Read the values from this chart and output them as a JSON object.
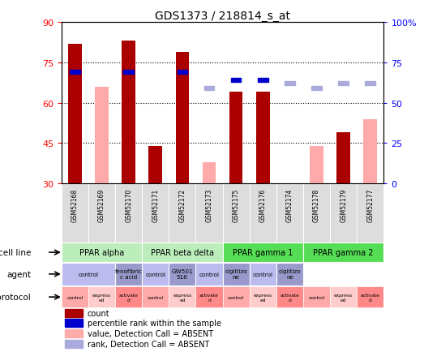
{
  "title": "GDS1373 / 218814_s_at",
  "samples": [
    "GSM52168",
    "GSM52169",
    "GSM52170",
    "GSM52171",
    "GSM52172",
    "GSM52173",
    "GSM52175",
    "GSM52176",
    "GSM52174",
    "GSM52178",
    "GSM52179",
    "GSM52177"
  ],
  "count_values": [
    82,
    null,
    83,
    44,
    79,
    null,
    64,
    64,
    null,
    null,
    49,
    null
  ],
  "rank_values": [
    69,
    null,
    69,
    null,
    69,
    null,
    64,
    64,
    null,
    null,
    null,
    null
  ],
  "rank_absent": [
    null,
    null,
    null,
    null,
    null,
    59,
    null,
    null,
    62,
    59,
    62,
    62
  ],
  "value_absent": [
    null,
    66,
    null,
    null,
    null,
    38,
    null,
    null,
    null,
    44,
    null,
    54
  ],
  "ylim_left": [
    30,
    90
  ],
  "ylim_right": [
    0,
    100
  ],
  "yticks_left": [
    30,
    45,
    60,
    75,
    90
  ],
  "yticks_right": [
    0,
    25,
    50,
    75,
    100
  ],
  "ytick_right_labels": [
    "0",
    "25",
    "50",
    "75",
    "100%"
  ],
  "bar_color_dark_red": "#AA0000",
  "bar_color_pink": "#FFAAAA",
  "rank_color_blue": "#0000CC",
  "rank_color_lightblue": "#AAAADD",
  "cell_line_labels": [
    "PPAR alpha",
    "PPAR beta delta",
    "PPAR gamma 1",
    "PPAR gamma 2"
  ],
  "cell_line_colors": [
    "#BBEEBB",
    "#BBEEBB",
    "#55DD55",
    "#55DD55"
  ],
  "agent_color": "#BBBBEE",
  "agent_color_dark": "#9999CC",
  "protocol_colors": [
    "#FFAAAA",
    "#FFCCCC",
    "#FF8888"
  ],
  "bg_color": "#FFFFFF",
  "xticklabel_bg": "#DDDDDD"
}
